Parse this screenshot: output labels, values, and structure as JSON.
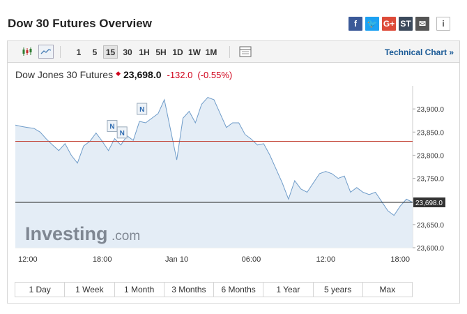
{
  "page_title": "Dow 30 Futures Overview",
  "share": [
    {
      "name": "facebook-share-button",
      "glyph": "f",
      "color": "#3b5998"
    },
    {
      "name": "twitter-share-button",
      "glyph": "🐦",
      "color": "#1da1f2"
    },
    {
      "name": "google-plus-share-button",
      "glyph": "G+",
      "color": "#dd4b39"
    },
    {
      "name": "stocktwits-share-button",
      "glyph": "ST",
      "color": "#3c4a5c"
    },
    {
      "name": "email-share-button",
      "glyph": "✉",
      "color": "#555555"
    },
    {
      "name": "info-button",
      "glyph": "i",
      "color": "#ffffff"
    }
  ],
  "toolbar": {
    "intervals": [
      "1",
      "5",
      "15",
      "30",
      "1H",
      "5H",
      "1D",
      "1W",
      "1M"
    ],
    "active_interval": "15",
    "technical_link": "Technical Chart »"
  },
  "quote": {
    "name": "Dow Jones 30 Futures",
    "price": "23,698.0",
    "change": "-132.0",
    "change_pct": "(-0.55%)"
  },
  "ranges": [
    "1 Day",
    "1 Week",
    "1 Month",
    "3 Months",
    "6 Months",
    "1 Year",
    "5 years",
    "Max"
  ],
  "watermark": {
    "brand": "Investing",
    "suffix": ".com"
  },
  "chart_data": {
    "type": "area",
    "x_ticks": [
      "12:00",
      "18:00",
      "Jan 10",
      "06:00",
      "12:00",
      "18:00"
    ],
    "y_ticks": [
      "23,900.0",
      "23,850.0",
      "23,800.0",
      "23,750.0",
      "23,650.0",
      "23,600.0"
    ],
    "ylim": [
      23600,
      23940
    ],
    "last_price_label": "23,698.0",
    "last_price": 23698,
    "previous_close": 23830,
    "series_hours": [
      0,
      0.5,
      1,
      1.5,
      2,
      2.5,
      3,
      3.5,
      4,
      4.5,
      5,
      5.5,
      6,
      6.5,
      7,
      7.5,
      8,
      8.5,
      9,
      9.5,
      10,
      10.5,
      11,
      11.5,
      12,
      12.5,
      13,
      13.5,
      14,
      14.5,
      15,
      15.5,
      16,
      16.5,
      17,
      17.5,
      18,
      18.5,
      19,
      19.5,
      20,
      20.5,
      21,
      21.5,
      22,
      22.5,
      23,
      23.5,
      24,
      24.5,
      25,
      25.5,
      26,
      26.5,
      27,
      27.5,
      28,
      28.5,
      29,
      29.5,
      30,
      30.5,
      31,
      31.5,
      32
    ],
    "series_values": [
      23865,
      23862,
      23860,
      23858,
      23850,
      23835,
      23822,
      23810,
      23825,
      23800,
      23783,
      23820,
      23830,
      23848,
      23830,
      23810,
      23836,
      23822,
      23842,
      23832,
      23873,
      23870,
      23880,
      23890,
      23920,
      23855,
      23790,
      23880,
      23895,
      23870,
      23910,
      23925,
      23920,
      23890,
      23860,
      23870,
      23870,
      23845,
      23835,
      23822,
      23825,
      23800,
      23770,
      23740,
      23705,
      23745,
      23727,
      23720,
      23740,
      23760,
      23765,
      23760,
      23750,
      23755,
      23720,
      23730,
      23720,
      23715,
      23720,
      23700,
      23680,
      23670,
      23690,
      23705,
      23698
    ],
    "news_markers": [
      {
        "label": "N",
        "hour": 7.8
      },
      {
        "label": "N",
        "hour": 8.6
      },
      {
        "label": "N",
        "hour": 10.2
      }
    ],
    "grid": false,
    "fill_color": "#e4edf6",
    "line_color": "#6f9cc9",
    "close_line_color": "#c0392b"
  }
}
